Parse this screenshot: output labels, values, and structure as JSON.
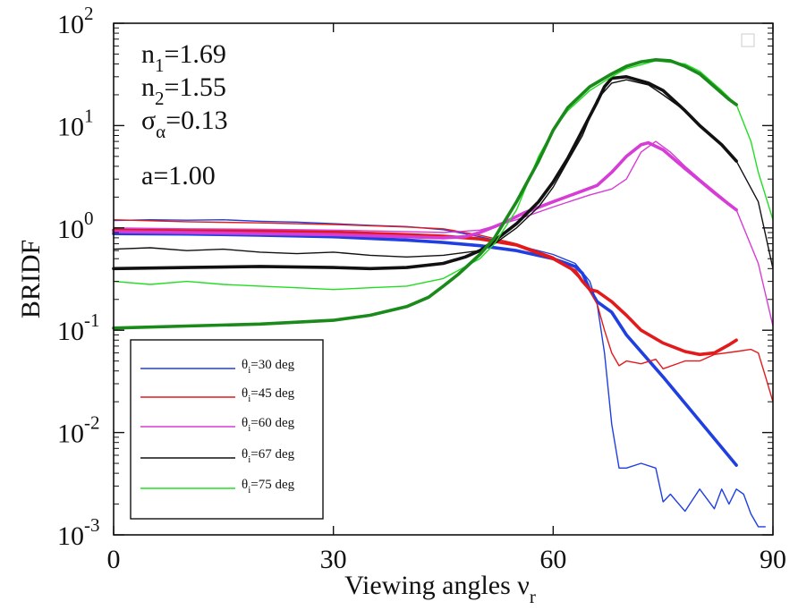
{
  "chart_data": {
    "type": "line",
    "xlabel": "Viewing angles ν",
    "xlabel_sub": "r",
    "ylabel": "BRIDF",
    "xlim": [
      0,
      90
    ],
    "ylim": [
      0.001,
      100
    ],
    "yscale": "log",
    "grid": false,
    "legend_position": "bottom-left",
    "x_ticks": [
      "0",
      "30",
      "60",
      "90"
    ],
    "x_tick_values": [
      0,
      30,
      60,
      90
    ],
    "y_ticks": [
      {
        "base": "10",
        "exp": "-3",
        "value": 0.001
      },
      {
        "base": "10",
        "exp": "-2",
        "value": 0.01
      },
      {
        "base": "10",
        "exp": "-1",
        "value": 0.1
      },
      {
        "base": "10",
        "exp": "0",
        "value": 1
      },
      {
        "base": "10",
        "exp": "1",
        "value": 10
      },
      {
        "base": "10",
        "exp": "2",
        "value": 100
      }
    ],
    "params": [
      {
        "sym": "n",
        "sub": "1",
        "val": "=1.69"
      },
      {
        "sym": "n",
        "sub": "2",
        "val": "=1.55"
      },
      {
        "sym": "σ",
        "sub": "α",
        "val": "=0.13"
      },
      {
        "sym": "a",
        "sub": "",
        "val": "=1.00"
      }
    ],
    "series": [
      {
        "name_main": "θ",
        "name_sub": "i",
        "name_rest": "=30 deg",
        "color": "#1f3fe0",
        "model": {
          "x": [
            0,
            10,
            20,
            30,
            40,
            45,
            50,
            55,
            60,
            63,
            64,
            65,
            66,
            68,
            70,
            75,
            80,
            85
          ],
          "y": [
            0.88,
            0.87,
            0.85,
            0.82,
            0.76,
            0.72,
            0.67,
            0.6,
            0.5,
            0.42,
            0.36,
            0.25,
            0.19,
            0.15,
            0.09,
            0.035,
            0.013,
            0.0048
          ]
        },
        "measured": {
          "x": [
            0,
            5,
            10,
            15,
            20,
            25,
            30,
            35,
            40,
            45,
            50,
            55,
            60,
            63,
            65,
            66,
            67,
            68,
            69,
            70,
            72,
            74,
            75,
            76,
            78,
            80,
            82,
            83,
            84,
            85,
            86,
            87,
            88,
            89
          ],
          "y": [
            1.18,
            1.2,
            1.19,
            1.2,
            1.16,
            1.14,
            1.1,
            1.06,
            1.03,
            0.96,
            0.82,
            0.68,
            0.55,
            0.45,
            0.3,
            0.18,
            0.06,
            0.012,
            0.0045,
            0.0045,
            0.005,
            0.0045,
            0.0021,
            0.0025,
            0.0017,
            0.0028,
            0.0018,
            0.0028,
            0.002,
            0.0028,
            0.0025,
            0.0016,
            0.0012,
            0.0012
          ]
        }
      },
      {
        "name_main": "θ",
        "name_sub": "i",
        "name_rest": "=45 deg",
        "color": "#e31a1c",
        "model": {
          "x": [
            0,
            10,
            20,
            30,
            40,
            45,
            50,
            55,
            60,
            63,
            64,
            65,
            66,
            68,
            70,
            72,
            75,
            78,
            80,
            82,
            84,
            85
          ],
          "y": [
            0.95,
            0.94,
            0.93,
            0.91,
            0.86,
            0.83,
            0.78,
            0.68,
            0.5,
            0.38,
            0.3,
            0.25,
            0.24,
            0.19,
            0.14,
            0.1,
            0.075,
            0.062,
            0.058,
            0.06,
            0.072,
            0.08
          ]
        },
        "measured": {
          "x": [
            0,
            10,
            20,
            30,
            40,
            45,
            50,
            55,
            60,
            62,
            64,
            65,
            66,
            67,
            68,
            69,
            70,
            72,
            74,
            75,
            78,
            80,
            82,
            85,
            87,
            88,
            89,
            90
          ],
          "y": [
            1.2,
            1.15,
            1.12,
            1.08,
            1.02,
            0.98,
            0.85,
            0.7,
            0.52,
            0.42,
            0.3,
            0.24,
            0.18,
            0.1,
            0.06,
            0.045,
            0.05,
            0.047,
            0.052,
            0.042,
            0.05,
            0.05,
            0.058,
            0.062,
            0.065,
            0.06,
            0.035,
            0.02
          ]
        }
      },
      {
        "name_main": "θ",
        "name_sub": "i",
        "name_rest": "=60 deg",
        "color": "#d63cd6",
        "model": {
          "x": [
            0,
            10,
            20,
            30,
            40,
            45,
            48,
            50,
            53,
            56,
            60,
            64,
            66,
            68,
            70,
            72,
            73,
            75,
            78,
            80,
            82,
            84,
            85
          ],
          "y": [
            0.92,
            0.9,
            0.88,
            0.86,
            0.82,
            0.8,
            0.82,
            0.9,
            1.1,
            1.4,
            1.8,
            2.3,
            2.6,
            3.5,
            5.0,
            6.5,
            6.8,
            5.8,
            3.8,
            2.9,
            2.2,
            1.7,
            1.5
          ]
        },
        "measured": {
          "x": [
            0,
            10,
            20,
            30,
            40,
            45,
            50,
            55,
            60,
            65,
            68,
            70,
            72,
            74,
            76,
            78,
            80,
            83,
            85,
            88,
            90
          ],
          "y": [
            1.0,
            0.98,
            0.97,
            0.95,
            0.92,
            0.9,
            0.95,
            1.2,
            1.6,
            2.1,
            2.4,
            3.0,
            5.5,
            7.0,
            5.5,
            4.0,
            3.0,
            2.0,
            1.5,
            0.45,
            0.11
          ]
        }
      },
      {
        "name_main": "θ",
        "name_sub": "i",
        "name_rest": "=67 deg",
        "color": "#111111",
        "model": {
          "x": [
            0,
            10,
            20,
            30,
            35,
            40,
            45,
            48,
            50,
            52,
            55,
            58,
            60,
            62,
            64,
            66,
            67,
            68,
            70,
            73,
            75,
            78,
            80,
            83,
            85
          ],
          "y": [
            0.4,
            0.41,
            0.42,
            0.41,
            0.4,
            0.41,
            0.45,
            0.52,
            0.6,
            0.75,
            1.1,
            1.8,
            2.8,
            4.8,
            9.0,
            17,
            24,
            29,
            30,
            26,
            22,
            14,
            10,
            6.5,
            4.5
          ]
        },
        "measured": {
          "x": [
            0,
            5,
            10,
            15,
            20,
            25,
            30,
            35,
            40,
            45,
            50,
            52,
            55,
            58,
            60,
            62,
            64,
            66,
            68,
            70,
            73,
            75,
            78,
            80,
            83,
            85,
            88,
            90
          ],
          "y": [
            0.62,
            0.64,
            0.6,
            0.62,
            0.58,
            0.56,
            0.58,
            0.54,
            0.52,
            0.54,
            0.6,
            0.7,
            1.0,
            1.6,
            2.5,
            4.5,
            8.0,
            18,
            26,
            28,
            25,
            20,
            14,
            10,
            6.5,
            4.5,
            1.8,
            0.4
          ]
        }
      },
      {
        "name_main": "θ",
        "name_sub": "i",
        "name_rest": "=75 deg",
        "color": "#22dd22",
        "model_color": "#1a8a1a",
        "model": {
          "x": [
            0,
            10,
            20,
            30,
            35,
            40,
            43,
            45,
            47,
            50,
            52,
            55,
            58,
            60,
            62,
            65,
            68,
            70,
            72,
            74,
            76,
            78,
            80,
            82,
            84,
            85
          ],
          "y": [
            0.105,
            0.11,
            0.115,
            0.125,
            0.14,
            0.17,
            0.21,
            0.27,
            0.35,
            0.55,
            0.8,
            1.8,
            4.5,
            9.0,
            15,
            24,
            32,
            38,
            42,
            44,
            43,
            38,
            32,
            24,
            18,
            16
          ]
        },
        "measured": {
          "x": [
            0,
            5,
            10,
            15,
            20,
            25,
            30,
            35,
            40,
            45,
            50,
            52,
            55,
            58,
            60,
            62,
            65,
            68,
            70,
            74,
            78,
            80,
            83,
            85,
            87,
            88,
            90
          ],
          "y": [
            0.3,
            0.28,
            0.3,
            0.28,
            0.27,
            0.26,
            0.25,
            0.26,
            0.27,
            0.32,
            0.5,
            0.7,
            1.5,
            5.0,
            9.0,
            14,
            22,
            30,
            36,
            43,
            40,
            34,
            22,
            16,
            7,
            3.5,
            1.2
          ]
        }
      }
    ]
  }
}
